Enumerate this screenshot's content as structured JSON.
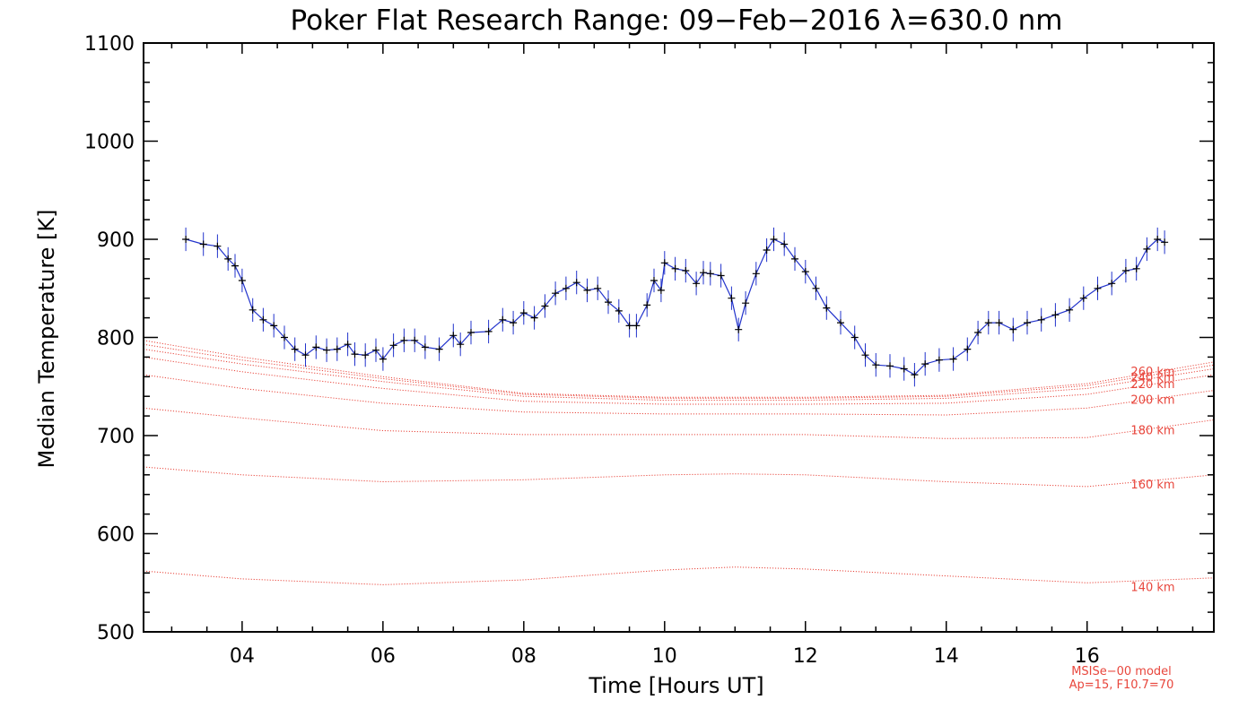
{
  "chart_data": {
    "type": "line",
    "title": "Poker Flat Research Range: 09−Feb−2016 λ=630.0 nm",
    "xlabel": "Time [Hours UT]",
    "ylabel": "Median Temperature [K]",
    "xlim": [
      2.6,
      17.8
    ],
    "ylim": [
      500,
      1100
    ],
    "x_ticks": [
      4,
      6,
      8,
      10,
      12,
      14,
      16
    ],
    "x_tick_labels": [
      "04",
      "06",
      "08",
      "10",
      "12",
      "14",
      "16"
    ],
    "y_ticks": [
      500,
      600,
      700,
      800,
      900,
      1000,
      1100
    ],
    "y_tick_labels": [
      "500",
      "600",
      "700",
      "800",
      "900",
      "1000",
      "1100"
    ],
    "colors": {
      "measurement": "#000000",
      "error_bars": "#2233cc",
      "connector": "#2233cc",
      "model": "#e8463c"
    },
    "measurements": {
      "name": "Median temperature",
      "x": [
        3.2,
        3.45,
        3.65,
        3.8,
        3.9,
        4.0,
        4.15,
        4.3,
        4.45,
        4.6,
        4.75,
        4.9,
        5.05,
        5.2,
        5.35,
        5.5,
        5.6,
        5.75,
        5.9,
        6.0,
        6.15,
        6.3,
        6.45,
        6.6,
        6.8,
        7.0,
        7.1,
        7.25,
        7.5,
        7.7,
        7.85,
        8.0,
        8.15,
        8.3,
        8.45,
        8.6,
        8.75,
        8.9,
        9.05,
        9.2,
        9.35,
        9.5,
        9.6,
        9.75,
        9.85,
        9.95,
        10.0,
        10.15,
        10.3,
        10.45,
        10.55,
        10.65,
        10.8,
        10.95,
        11.05,
        11.15,
        11.3,
        11.45,
        11.55,
        11.7,
        11.85,
        12.0,
        12.15,
        12.3,
        12.5,
        12.7,
        12.85,
        13.0,
        13.2,
        13.4,
        13.55,
        13.7,
        13.9,
        14.1,
        14.3,
        14.45,
        14.6,
        14.75,
        14.95,
        15.15,
        15.35,
        15.55,
        15.75,
        15.95,
        16.15,
        16.35,
        16.55,
        16.7,
        16.85,
        17.0,
        17.1
      ],
      "y": [
        900,
        895,
        893,
        880,
        873,
        858,
        828,
        818,
        812,
        800,
        788,
        782,
        790,
        787,
        788,
        793,
        783,
        782,
        787,
        778,
        792,
        797,
        797,
        790,
        788,
        802,
        793,
        805,
        806,
        818,
        815,
        825,
        820,
        832,
        845,
        850,
        856,
        848,
        850,
        836,
        827,
        812,
        812,
        833,
        858,
        848,
        876,
        870,
        868,
        855,
        866,
        865,
        863,
        840,
        808,
        835,
        865,
        889,
        900,
        895,
        880,
        867,
        850,
        830,
        815,
        800,
        782,
        772,
        771,
        768,
        762,
        773,
        777,
        778,
        788,
        805,
        815,
        815,
        808,
        815,
        818,
        823,
        828,
        840,
        850,
        855,
        868,
        870,
        890,
        900,
        897
      ],
      "error_halfwidth_K": 12
    },
    "model_series": [
      {
        "name": "140 km",
        "x": [
          2.6,
          4,
          6,
          8,
          10,
          11,
          12,
          14,
          16,
          17.8
        ],
        "y": [
          562,
          554,
          548,
          553,
          563,
          566,
          564,
          557,
          550,
          555
        ]
      },
      {
        "name": "160 km",
        "x": [
          2.6,
          4,
          6,
          8,
          10,
          11,
          12,
          14,
          16,
          17.8
        ],
        "y": [
          668,
          660,
          653,
          655,
          660,
          661,
          660,
          653,
          648,
          660
        ]
      },
      {
        "name": "180 km",
        "x": [
          2.6,
          4,
          6,
          8,
          10,
          11,
          12,
          14,
          16,
          17.8
        ],
        "y": [
          728,
          718,
          705,
          701,
          701,
          701,
          701,
          697,
          698,
          716
        ]
      },
      {
        "name": "200 km",
        "x": [
          2.6,
          4,
          6,
          8,
          10,
          11,
          12,
          14,
          16,
          17.8
        ],
        "y": [
          762,
          748,
          733,
          724,
          722,
          722,
          722,
          721,
          728,
          746
        ]
      },
      {
        "name": "220 km",
        "x": [
          2.6,
          4,
          6,
          8,
          10,
          11,
          12,
          14,
          16,
          17.8
        ],
        "y": [
          780,
          765,
          748,
          735,
          732,
          732,
          732,
          733,
          742,
          762
        ]
      },
      {
        "name": "240 km",
        "x": [
          2.6,
          4,
          6,
          8,
          10,
          11,
          12,
          14,
          16,
          17.8
        ],
        "y": [
          788,
          773,
          755,
          740,
          736,
          736,
          736,
          738,
          748,
          768
        ]
      },
      {
        "name": "260 km",
        "x": [
          2.6,
          4,
          6,
          8,
          10,
          11,
          12,
          14,
          16,
          17.8
        ],
        "y": [
          793,
          777,
          758,
          742,
          738,
          738,
          738,
          740,
          751,
          772
        ]
      },
      {
        "name": "",
        "x": [
          2.6,
          4,
          6,
          8,
          10,
          11,
          12,
          14,
          16,
          17.8
        ],
        "y": [
          797,
          780,
          760,
          743,
          739,
          739,
          739,
          741,
          753,
          775
        ]
      }
    ],
    "model_labels": [
      {
        "text": "260 km",
        "y": 765
      },
      {
        "text": "240 km",
        "y": 759
      },
      {
        "text": "220 km",
        "y": 752
      },
      {
        "text": "200 km",
        "y": 736
      },
      {
        "text": "180 km",
        "y": 705
      },
      {
        "text": "160 km",
        "y": 650
      },
      {
        "text": "140 km",
        "y": 545
      }
    ],
    "annotation": {
      "line1": "MSISe−00 model",
      "line2": "Ap=15, F10.7=70"
    },
    "grid": false
  }
}
